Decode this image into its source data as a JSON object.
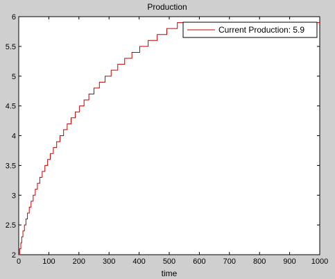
{
  "chart_data": {
    "type": "line",
    "title": "Production",
    "xlabel": "time",
    "ylabel": "",
    "xlim": [
      0,
      1000
    ],
    "ylim": [
      2,
      6
    ],
    "xticks": [
      0,
      100,
      200,
      300,
      400,
      500,
      600,
      700,
      800,
      900,
      1000
    ],
    "yticks": [
      2,
      2.5,
      3,
      3.5,
      4,
      4.5,
      5,
      5.5,
      6
    ],
    "grid": false,
    "legend_position": "top-right",
    "series": [
      {
        "name": "Current Production: 5.9",
        "color": "#c00000",
        "step": true,
        "x": [
          0,
          3,
          7,
          10,
          14,
          19,
          24,
          29,
          35,
          41,
          48,
          55,
          62,
          70,
          78,
          87,
          96,
          105,
          115,
          126,
          137,
          149,
          161,
          174,
          188,
          202,
          217,
          233,
          250,
          268,
          287,
          307,
          329,
          352,
          376,
          402,
          430,
          460,
          492,
          527,
          564,
          604,
          647,
          694,
          745,
          800,
          860,
          925,
          1000
        ],
        "y": [
          2.0,
          2.1,
          2.2,
          2.3,
          2.4,
          2.5,
          2.6,
          2.7,
          2.8,
          2.9,
          3.0,
          3.1,
          3.2,
          3.3,
          3.4,
          3.5,
          3.6,
          3.7,
          3.8,
          3.9,
          4.0,
          4.1,
          4.2,
          4.3,
          4.4,
          4.5,
          4.6,
          4.7,
          4.8,
          4.9,
          5.0,
          5.1,
          5.2,
          5.3,
          5.4,
          5.5,
          5.6,
          5.7,
          5.8,
          5.9,
          5.9,
          5.9,
          5.9,
          5.9,
          5.9,
          5.9,
          5.9,
          5.9,
          5.9
        ]
      }
    ]
  }
}
